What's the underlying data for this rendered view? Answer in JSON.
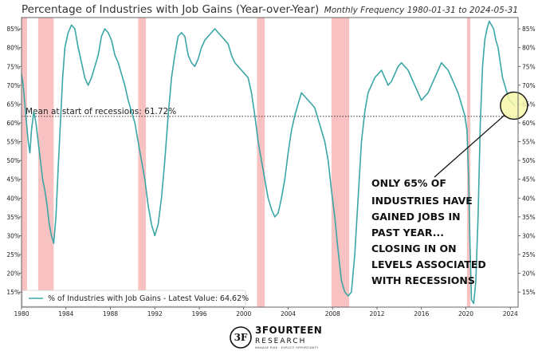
{
  "chart_data": {
    "type": "line",
    "title": "Percentage of Industries with Job Gains (Year-over-Year)",
    "subtitle": "Monthly Frequency 1980-01-31 to 2024-05-31",
    "xlim": [
      1980.0,
      2024.7
    ],
    "ylim": [
      11,
      88
    ],
    "x_ticks": [
      1980,
      1984,
      1988,
      1992,
      1996,
      2000,
      2004,
      2008,
      2012,
      2016,
      2020,
      2024
    ],
    "y_ticks": [
      15,
      20,
      25,
      30,
      35,
      40,
      45,
      50,
      55,
      60,
      65,
      70,
      75,
      80,
      85
    ],
    "y_tick_format": "{v}%",
    "series": [
      {
        "name": "% of Industries with Job Gains - Latest Value: 64.62%",
        "color": "#3aa6a6",
        "x": [
          1980.0,
          1980.15,
          1980.3,
          1980.45,
          1980.6,
          1980.75,
          1980.9,
          1981.1,
          1981.3,
          1981.5,
          1981.7,
          1981.9,
          1982.1,
          1982.3,
          1982.5,
          1982.7,
          1982.9,
          1983.1,
          1983.3,
          1983.5,
          1983.7,
          1983.9,
          1984.2,
          1984.5,
          1984.8,
          1985.1,
          1985.4,
          1985.7,
          1986.0,
          1986.3,
          1986.6,
          1986.9,
          1987.2,
          1987.5,
          1987.8,
          1988.1,
          1988.4,
          1988.7,
          1989.0,
          1989.3,
          1989.6,
          1989.9,
          1990.2,
          1990.5,
          1990.8,
          1991.1,
          1991.4,
          1991.7,
          1992.0,
          1992.3,
          1992.6,
          1992.9,
          1993.2,
          1993.5,
          1993.8,
          1994.1,
          1994.4,
          1994.7,
          1995.0,
          1995.3,
          1995.6,
          1995.9,
          1996.2,
          1996.5,
          1996.8,
          1997.1,
          1997.4,
          1997.7,
          1998.0,
          1998.3,
          1998.6,
          1998.9,
          1999.2,
          1999.5,
          1999.8,
          2000.1,
          2000.4,
          2000.7,
          2001.0,
          2001.3,
          2001.6,
          2001.9,
          2002.2,
          2002.5,
          2002.8,
          2003.1,
          2003.4,
          2003.7,
          2004.0,
          2004.3,
          2004.6,
          2004.9,
          2005.2,
          2005.5,
          2005.8,
          2006.1,
          2006.4,
          2006.7,
          2007.0,
          2007.3,
          2007.6,
          2007.9,
          2008.2,
          2008.5,
          2008.8,
          2009.1,
          2009.4,
          2009.7,
          2010.0,
          2010.3,
          2010.6,
          2010.9,
          2011.2,
          2011.5,
          2011.8,
          2012.1,
          2012.4,
          2012.7,
          2013.0,
          2013.3,
          2013.6,
          2013.9,
          2014.2,
          2014.5,
          2014.8,
          2015.1,
          2015.4,
          2015.7,
          2016.0,
          2016.3,
          2016.6,
          2016.9,
          2017.2,
          2017.5,
          2017.8,
          2018.1,
          2018.4,
          2018.7,
          2019.0,
          2019.3,
          2019.6,
          2019.9,
          2020.1,
          2020.25,
          2020.35,
          2020.5,
          2020.7,
          2020.9,
          2021.1,
          2021.3,
          2021.5,
          2021.7,
          2021.9,
          2022.1,
          2022.3,
          2022.5,
          2022.7,
          2022.9,
          2023.1,
          2023.3,
          2023.5,
          2023.7,
          2023.9,
          2024.1,
          2024.25,
          2024.4
        ],
        "values": [
          73,
          70,
          65,
          60,
          55,
          52,
          58,
          63,
          60,
          55,
          50,
          45,
          42,
          38,
          33,
          30,
          28,
          35,
          48,
          60,
          72,
          80,
          84,
          86,
          85,
          80,
          76,
          72,
          70,
          72,
          75,
          78,
          83,
          85,
          84,
          82,
          78,
          76,
          73,
          70,
          66,
          63,
          60,
          55,
          50,
          45,
          38,
          33,
          30,
          33,
          40,
          50,
          62,
          72,
          78,
          83,
          84,
          83,
          78,
          76,
          75,
          77,
          80,
          82,
          83,
          84,
          85,
          84,
          83,
          82,
          81,
          78,
          76,
          75,
          74,
          73,
          72,
          68,
          62,
          55,
          50,
          45,
          40,
          37,
          35,
          36,
          40,
          45,
          52,
          58,
          62,
          65,
          68,
          67,
          66,
          65,
          64,
          61,
          58,
          55,
          50,
          42,
          35,
          26,
          18,
          15,
          14,
          15,
          25,
          40,
          55,
          63,
          68,
          70,
          72,
          73,
          74,
          72,
          70,
          71,
          73,
          75,
          76,
          75,
          74,
          72,
          70,
          68,
          66,
          67,
          68,
          70,
          72,
          74,
          76,
          75,
          74,
          72,
          70,
          68,
          65,
          62,
          58,
          45,
          30,
          13,
          12,
          18,
          35,
          60,
          75,
          82,
          85,
          87,
          86,
          85,
          82,
          80,
          76,
          72,
          70,
          68,
          66,
          65.5,
          65,
          64.62
        ]
      }
    ],
    "recessions": [
      [
        1980.0,
        1980.5
      ],
      [
        1981.5,
        1982.9
      ],
      [
        1990.5,
        1991.2
      ],
      [
        2001.2,
        2001.9
      ],
      [
        2007.9,
        2009.5
      ],
      [
        2020.1,
        2020.4
      ]
    ],
    "mean_line": {
      "value": 61.72,
      "label": "Mean at start of recessions: 61.72%"
    },
    "annotation": {
      "lines": [
        "ONLY 65% OF",
        "INDUSTRIES HAVE",
        "GAINED JOBS IN",
        "PAST YEAR...",
        "CLOSING IN ON",
        "LEVELS ASSOCIATED",
        "WITH RECESSIONS"
      ],
      "highlight_point": [
        2023.9,
        65
      ]
    },
    "legend": {
      "position": "bottom-left",
      "label": "% of Industries with Job Gains - Latest Value: 64.62%"
    }
  },
  "branding": {
    "logo_name": "3FOURTEEN",
    "logo_sub": "RESEARCH",
    "logo_tagline": "MANAGE RISK · EXPLOIT OPPORTUNITY",
    "logo_mark": "3F"
  },
  "colors": {
    "line": "#3aa6a6",
    "recession": "#f7b7b7",
    "mean_line": "#333333",
    "highlight": "#f6f7a8",
    "border": "#666666"
  }
}
